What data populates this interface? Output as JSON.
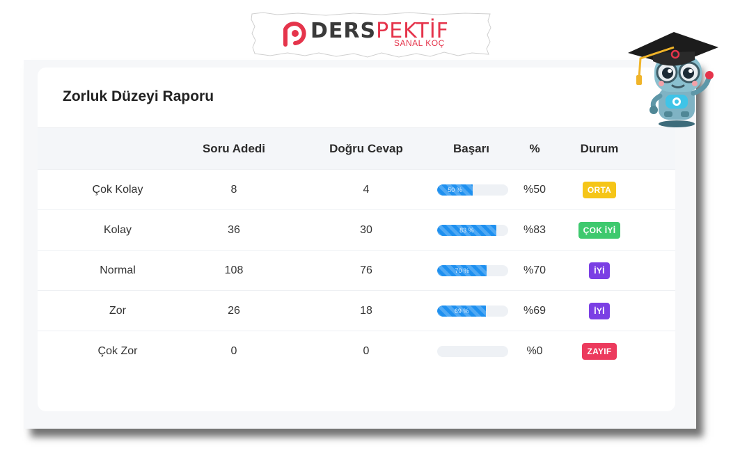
{
  "logo": {
    "brand_main": "DERS",
    "brand_accent": "PEKTİF",
    "tagline": "SANAL KOÇ",
    "mark_icon": "derspektif-d-icon",
    "brand_color": "#e5344b"
  },
  "report": {
    "title": "Zorluk Düzeyi Raporu",
    "columns": {
      "name": "",
      "questions": "Soru Adedi",
      "correct": "Doğru Cevap",
      "success": "Başarı",
      "percent": "%",
      "status": "Durum"
    },
    "rows": [
      {
        "name": "Çok Kolay",
        "questions": "8",
        "correct": "4",
        "success_value": 50,
        "bar_label": "50 %",
        "percent": "%50",
        "status": "ORTA",
        "status_color": "#f5c518"
      },
      {
        "name": "Kolay",
        "questions": "36",
        "correct": "30",
        "success_value": 83,
        "bar_label": "83 %",
        "percent": "%83",
        "status": "ÇOK İYİ",
        "status_color": "#3ec96e"
      },
      {
        "name": "Normal",
        "questions": "108",
        "correct": "76",
        "success_value": 70,
        "bar_label": "70 %",
        "percent": "%70",
        "status": "İYİ",
        "status_color": "#7b3fe4"
      },
      {
        "name": "Zor",
        "questions": "26",
        "correct": "18",
        "success_value": 69,
        "bar_label": "69 %",
        "percent": "%69",
        "status": "İYİ",
        "status_color": "#7b3fe4"
      },
      {
        "name": "Çok Zor",
        "questions": "0",
        "correct": "0",
        "success_value": 0,
        "bar_label": "",
        "percent": "%0",
        "status": "ZAYIF",
        "status_color": "#ec3a5d"
      }
    ]
  },
  "mascot": {
    "icon": "robot-graduate-mascot-icon"
  },
  "colors": {
    "bar_fill": "#1e90f0",
    "bar_track": "#eef1f5",
    "header_bg": "#f4f6f9"
  }
}
